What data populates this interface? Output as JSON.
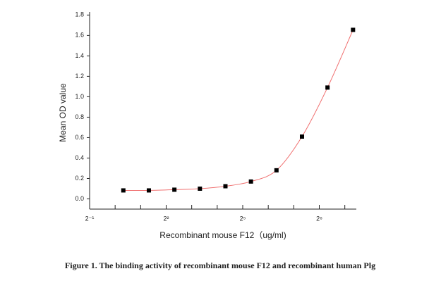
{
  "chart_data": {
    "type": "line",
    "xlabel": "Recombinant mouse F12（ug/ml)",
    "ylabel": "Mean OD value",
    "caption": "Figure 1. The binding activity of recombinant mouse F12 and recombinant human Plg",
    "x": [
      1.25,
      2.5,
      5,
      10,
      20,
      40,
      80,
      160,
      320,
      640
    ],
    "series": [
      {
        "color": "#f07070",
        "marker_color": "#000000",
        "values": [
          0.083,
          0.083,
          0.09,
          0.1,
          0.124,
          0.17,
          0.28,
          0.61,
          1.09,
          1.655
        ]
      }
    ],
    "xscale": "log2",
    "xlim": [
      0.5,
      700
    ],
    "xticks": [
      {
        "value": 0.5,
        "label": "2⁻¹"
      },
      {
        "value": 4,
        "label": "2²"
      },
      {
        "value": 32,
        "label": "2⁵"
      },
      {
        "value": 256,
        "label": "2⁸"
      }
    ],
    "minor_xticks": [
      1,
      2,
      8,
      16,
      64,
      128,
      512
    ],
    "ylim": [
      -0.1,
      1.83
    ],
    "yticks": [
      {
        "value": 0,
        "label": "0.0"
      },
      0.2,
      0.4,
      0.6,
      0.8,
      {
        "value": 1,
        "label": "1.0"
      },
      1.2,
      1.4,
      1.6,
      1.8
    ]
  }
}
